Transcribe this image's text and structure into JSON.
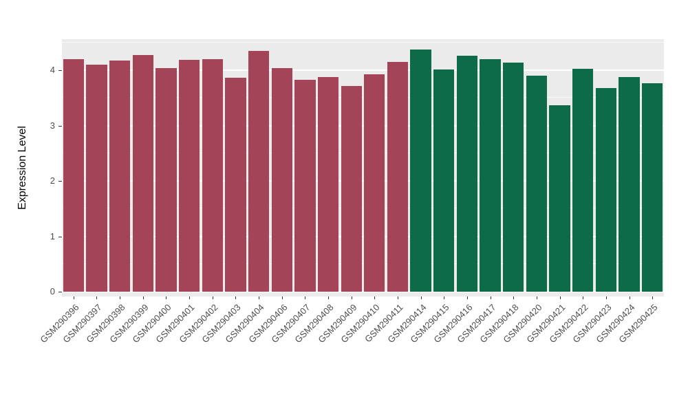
{
  "chart_data": {
    "type": "bar",
    "title": "",
    "xlabel": "",
    "ylabel": "Expression Level",
    "categories": [
      "GSM290396",
      "GSM290397",
      "GSM290398",
      "GSM290399",
      "GSM290400",
      "GSM290401",
      "GSM290402",
      "GSM290403",
      "GSM290404",
      "GSM290406",
      "GSM290407",
      "GSM290408",
      "GSM290409",
      "GSM290410",
      "GSM290411",
      "GSM290414",
      "GSM290415",
      "GSM290416",
      "GSM290417",
      "GSM290418",
      "GSM290420",
      "GSM290421",
      "GSM290422",
      "GSM290423",
      "GSM290424",
      "GSM290425"
    ],
    "values": [
      4.2,
      4.1,
      4.17,
      4.28,
      4.04,
      4.19,
      4.2,
      3.87,
      4.35,
      4.04,
      3.83,
      3.88,
      3.72,
      3.93,
      4.15,
      4.37,
      4.01,
      4.26,
      4.2,
      4.14,
      3.9,
      3.37,
      4.02,
      3.68,
      3.88,
      3.77
    ],
    "groups": [
      "A",
      "A",
      "A",
      "A",
      "A",
      "A",
      "A",
      "A",
      "A",
      "A",
      "A",
      "A",
      "A",
      "A",
      "A",
      "B",
      "B",
      "B",
      "B",
      "B",
      "B",
      "B",
      "B",
      "B",
      "B",
      "B"
    ],
    "group_colors": {
      "A": "#A34458",
      "B": "#0E6B4A"
    },
    "yticks": [
      0,
      1,
      2,
      3,
      4
    ],
    "yticks_minor": [
      0.5,
      1.5,
      2.5,
      3.5,
      4.5
    ],
    "ylim": [
      0,
      4.56
    ],
    "bar_width_fraction": 0.9,
    "panel_background": "#EBEBEB",
    "grid_color": "#FFFFFF",
    "axis_text_color": "#4D4D4D",
    "axis_title_color": "#000000",
    "legend": "none",
    "grid": "on"
  }
}
